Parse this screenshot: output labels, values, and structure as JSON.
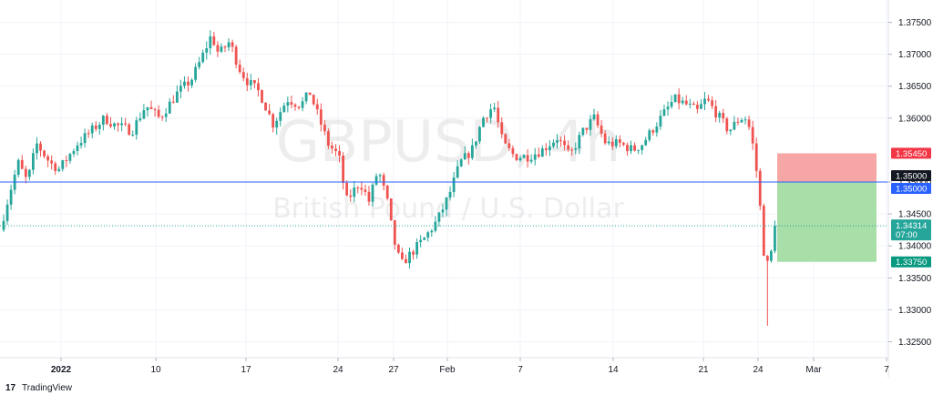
{
  "branding": {
    "logo_mark": "17",
    "name": "TradingView"
  },
  "watermark": {
    "symbol": "GBPUSD, 4h",
    "description": "British Pound / U.S. Dollar"
  },
  "colors": {
    "up": "#26a69a",
    "down": "#ef5350",
    "stop_zone": "#f7a1a1",
    "target_zone": "#a3dca2",
    "level_line": "#2962ff",
    "badge_stop": "#f23645",
    "badge_target": "#089981",
    "badge_level": "#2962ff",
    "badge_black": "#131722",
    "badge_price": "#26a69a"
  },
  "chart_data": {
    "type": "candlestick",
    "timeframe": "4h",
    "title": "GBPUSD, 4h",
    "subtitle": "British Pound / U.S. Dollar",
    "x_ticks": [
      "2022",
      "10",
      "17",
      "24",
      "27",
      "Feb",
      "7",
      "14",
      "21",
      "24",
      "Mar",
      "7"
    ],
    "y_ticks": [
      "1.37500",
      "1.37000",
      "1.36500",
      "1.36000",
      "1.35000",
      "1.34500",
      "1.34000",
      "1.33500",
      "1.33000",
      "1.32500"
    ],
    "ylim": [
      1.3225,
      1.3785
    ],
    "grid": true,
    "close_path": [
      [
        0,
        1.3425
      ],
      [
        10,
        1.348
      ],
      [
        20,
        1.353
      ],
      [
        30,
        1.35
      ],
      [
        40,
        1.356
      ],
      [
        55,
        1.353
      ],
      [
        65,
        1.352
      ],
      [
        85,
        1.356
      ],
      [
        100,
        1.358
      ],
      [
        115,
        1.36
      ],
      [
        125,
        1.359
      ],
      [
        145,
        1.358
      ],
      [
        160,
        1.362
      ],
      [
        175,
        1.36
      ],
      [
        195,
        1.364
      ],
      [
        210,
        1.366
      ],
      [
        220,
        1.369
      ],
      [
        232,
        1.373
      ],
      [
        240,
        1.37
      ],
      [
        252,
        1.372
      ],
      [
        262,
        1.368
      ],
      [
        270,
        1.366
      ],
      [
        285,
        1.364
      ],
      [
        300,
        1.359
      ],
      [
        315,
        1.363
      ],
      [
        330,
        1.362
      ],
      [
        340,
        1.364
      ],
      [
        350,
        1.36
      ],
      [
        360,
        1.356
      ],
      [
        372,
        1.354
      ],
      [
        380,
        1.347
      ],
      [
        395,
        1.35
      ],
      [
        405,
        1.347
      ],
      [
        415,
        1.352
      ],
      [
        425,
        1.347
      ],
      [
        432,
        1.341
      ],
      [
        440,
        1.337
      ],
      [
        452,
        1.339
      ],
      [
        465,
        1.341
      ],
      [
        480,
        1.344
      ],
      [
        493,
        1.348
      ],
      [
        505,
        1.353
      ],
      [
        518,
        1.355
      ],
      [
        530,
        1.36
      ],
      [
        542,
        1.362
      ],
      [
        552,
        1.356
      ],
      [
        565,
        1.354
      ],
      [
        580,
        1.354
      ],
      [
        595,
        1.355
      ],
      [
        612,
        1.357
      ],
      [
        625,
        1.354
      ],
      [
        640,
        1.358
      ],
      [
        652,
        1.36
      ],
      [
        665,
        1.356
      ],
      [
        680,
        1.356
      ],
      [
        695,
        1.355
      ],
      [
        705,
        1.356
      ],
      [
        720,
        1.359
      ],
      [
        740,
        1.363
      ],
      [
        755,
        1.362
      ],
      [
        765,
        1.361
      ],
      [
        775,
        1.363
      ],
      [
        790,
        1.36
      ],
      [
        800,
        1.358
      ],
      [
        812,
        1.36
      ],
      [
        820,
        1.36
      ],
      [
        826,
        1.356
      ],
      [
        832,
        1.35
      ],
      [
        836,
        1.343
      ],
      [
        839,
        1.338
      ],
      [
        842,
        1.337
      ],
      [
        845,
        1.338
      ],
      [
        848,
        1.34
      ],
      [
        853,
        1.3431
      ]
    ],
    "lows": [
      {
        "x": 843,
        "low": 1.3275
      }
    ],
    "horizontal_line": {
      "price": 1.35,
      "label": "1.35000"
    },
    "position": {
      "type": "long",
      "entry": 1.35,
      "stop": 1.3545,
      "target": 1.3375,
      "x_start": 853,
      "x_end": 962
    },
    "last_price": {
      "value": "1.34314",
      "countdown": "07:00",
      "price": 1.34314
    },
    "price_labels": [
      {
        "text": "1.35450",
        "price": 1.3545,
        "color": "badge_stop"
      },
      {
        "text": "1.35000",
        "price": 1.35,
        "color": "badge_black"
      },
      {
        "text": "1.35000",
        "price": 1.35,
        "color": "badge_level",
        "offset": 1
      },
      {
        "text": "1.33750",
        "price": 1.3375,
        "color": "badge_target"
      }
    ]
  }
}
